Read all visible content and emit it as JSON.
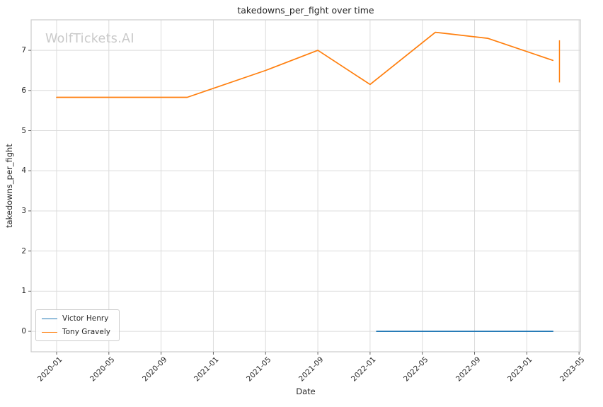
{
  "chart_data": {
    "type": "line",
    "title": "takedowns_per_fight over time",
    "xlabel": "Date",
    "ylabel": "takedowns_per_fight",
    "watermark": "WolfTickets.AI",
    "grid": true,
    "legend_position": "lower left",
    "x_unit": "months since 2020-01",
    "xlim": [
      -1.95,
      40.1
    ],
    "ylim": [
      -0.51,
      7.76
    ],
    "xticks": {
      "months": [
        0,
        4,
        8,
        12,
        16,
        20,
        24,
        28,
        32,
        36,
        40
      ],
      "labels": [
        "2020-01",
        "2020-05",
        "2020-09",
        "2021-01",
        "2021-05",
        "2021-09",
        "2022-01",
        "2022-05",
        "2022-09",
        "2023-01",
        "2023-05"
      ]
    },
    "yticks": {
      "values": [
        0,
        1,
        2,
        3,
        4,
        5,
        6,
        7
      ],
      "labels": [
        "0",
        "1",
        "2",
        "3",
        "4",
        "5",
        "6",
        "7"
      ]
    },
    "series": [
      {
        "name": "Victor Henry",
        "color": "#1f77b4",
        "points": [
          {
            "date": "2022-02",
            "month": 24.5,
            "value": 0.0
          },
          {
            "date": "2023-03",
            "month": 38.0,
            "value": 0.0
          }
        ]
      },
      {
        "name": "Tony Gravely",
        "color": "#ff7f0e",
        "points": [
          {
            "date": "2020-01",
            "month": 0,
            "value": 5.83
          },
          {
            "date": "2020-11",
            "month": 10,
            "value": 5.83
          },
          {
            "date": "2021-05",
            "month": 16,
            "value": 6.5
          },
          {
            "date": "2021-09",
            "month": 20,
            "value": 7.0
          },
          {
            "date": "2022-01",
            "month": 24,
            "value": 6.15
          },
          {
            "date": "2022-06",
            "month": 29,
            "value": 7.45
          },
          {
            "date": "2022-10",
            "month": 33,
            "value": 7.3
          },
          {
            "date": "2023-03",
            "month": 38,
            "value": 6.75
          }
        ]
      }
    ],
    "error_bar": {
      "series": "Tony Gravely",
      "date": "2023-03",
      "month": 38.5,
      "low": 6.2,
      "high": 7.25,
      "color": "#ff7f0e"
    },
    "colors": {
      "background": "#ffffff",
      "grid": "#dcdcdc",
      "spine": "#cccccc",
      "tick_mark": "#666666",
      "text": "#262626",
      "watermark": "#c9c9c9"
    }
  }
}
